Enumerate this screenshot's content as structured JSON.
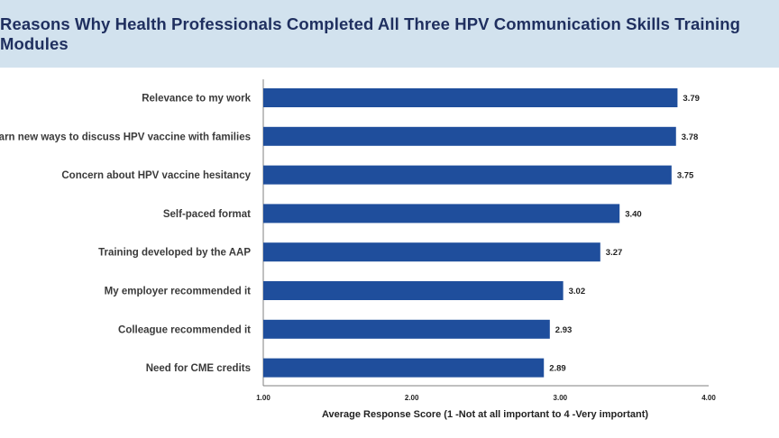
{
  "chart_data": {
    "type": "bar",
    "orientation": "horizontal",
    "title": "Reasons Why Health Professionals Completed All Three HPV Communication Skills Training Modules",
    "xlabel": "Average Response Score (1 -Not at all important to 4 -Very important)",
    "ylabel": "",
    "xlim": [
      1,
      4
    ],
    "xticks": [
      "1.00",
      "2.00",
      "3.00",
      "4.00"
    ],
    "categories": [
      "Relevance to my work",
      "Learn new ways to discuss HPV vaccine with families",
      "Concern about HPV vaccine hesitancy",
      "Self-paced format",
      "Training developed by the AAP",
      "My employer recommended it",
      "Colleague recommended it",
      "Need for CME credits"
    ],
    "values": [
      3.79,
      3.78,
      3.75,
      3.4,
      3.27,
      3.02,
      2.93,
      2.89
    ],
    "value_labels": [
      "3.79",
      "3.78",
      "3.75",
      "3.40",
      "3.27",
      "3.02",
      "2.93",
      "2.89"
    ],
    "bar_color": "#1f4e9c",
    "header_color": "#d2e2ee",
    "title_color": "#1f2f5f",
    "grid": false,
    "legend": "none"
  }
}
